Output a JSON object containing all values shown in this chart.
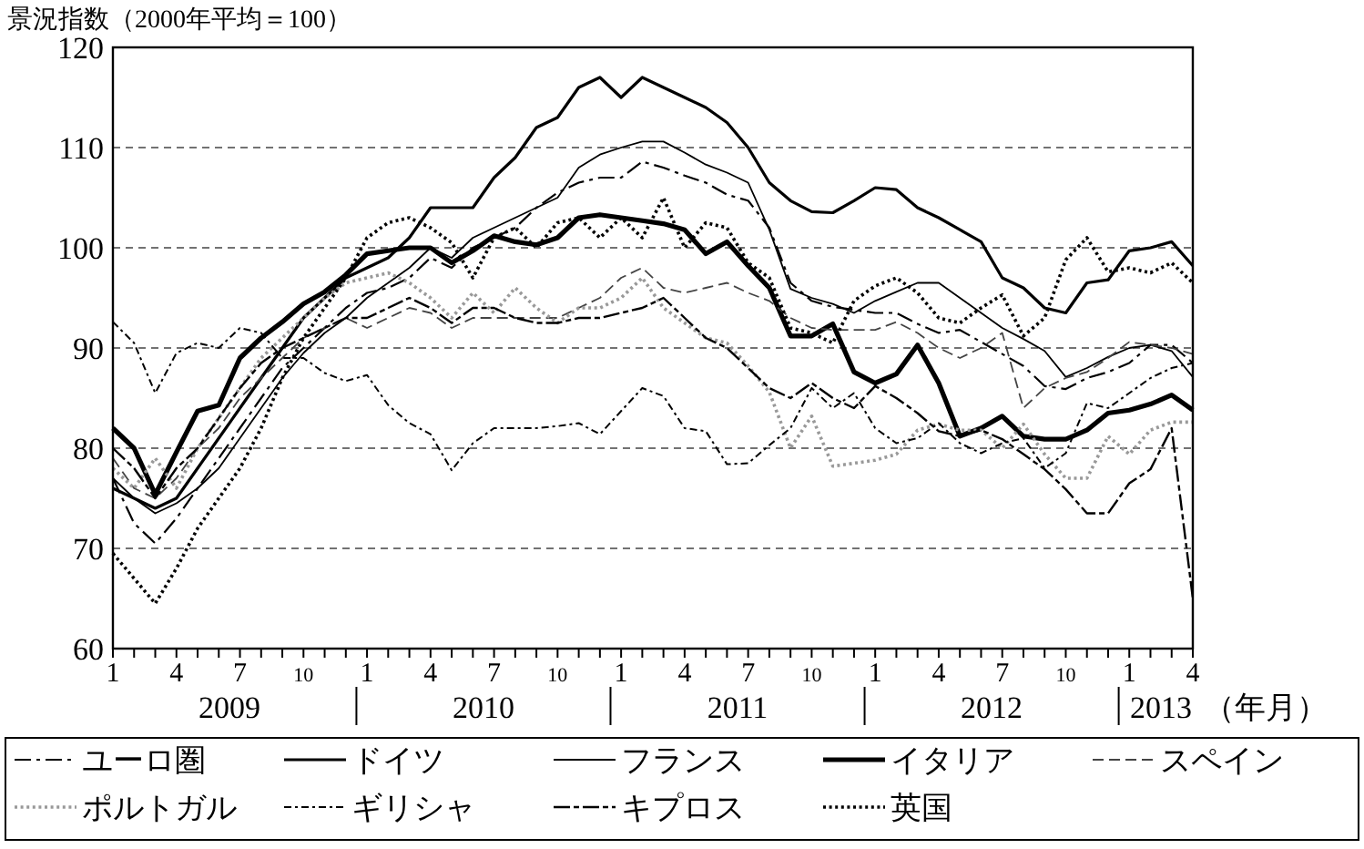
{
  "chart_data": {
    "type": "line",
    "title": "景況指数（2000年平均＝100）",
    "xlabel": "（年月）",
    "x": [
      "2009-01",
      "2009-02",
      "2009-03",
      "2009-04",
      "2009-05",
      "2009-06",
      "2009-07",
      "2009-08",
      "2009-09",
      "2009-10",
      "2009-11",
      "2009-12",
      "2010-01",
      "2010-02",
      "2010-03",
      "2010-04",
      "2010-05",
      "2010-06",
      "2010-07",
      "2010-08",
      "2010-09",
      "2010-10",
      "2010-11",
      "2010-12",
      "2011-01",
      "2011-02",
      "2011-03",
      "2011-04",
      "2011-05",
      "2011-06",
      "2011-07",
      "2011-08",
      "2011-09",
      "2011-10",
      "2011-11",
      "2011-12",
      "2012-01",
      "2012-02",
      "2012-03",
      "2012-04",
      "2012-05",
      "2012-06",
      "2012-07",
      "2012-08",
      "2012-09",
      "2012-10",
      "2012-11",
      "2012-12",
      "2013-01",
      "2013-02",
      "2013-03",
      "2013-04"
    ],
    "xlim": [
      "2009-01",
      "2013-04"
    ],
    "xticks": [
      {
        "value": "2009-01",
        "label": "1"
      },
      {
        "value": "2009-02",
        "label": null
      },
      {
        "value": "2009-03",
        "label": null
      },
      {
        "value": "2009-04",
        "label": "4"
      },
      {
        "value": "2009-05",
        "label": null
      },
      {
        "value": "2009-06",
        "label": null
      },
      {
        "value": "2009-07",
        "label": "7"
      },
      {
        "value": "2009-08",
        "label": null
      },
      {
        "value": "2009-09",
        "label": null
      },
      {
        "value": "2009-10",
        "label": "10"
      },
      {
        "value": "2009-11",
        "label": null
      },
      {
        "value": "2009-12",
        "label": null
      },
      {
        "value": "2010-01",
        "label": "1"
      },
      {
        "value": "2010-02",
        "label": null
      },
      {
        "value": "2010-03",
        "label": null
      },
      {
        "value": "2010-04",
        "label": "4"
      },
      {
        "value": "2010-05",
        "label": null
      },
      {
        "value": "2010-06",
        "label": null
      },
      {
        "value": "2010-07",
        "label": "7"
      },
      {
        "value": "2010-08",
        "label": null
      },
      {
        "value": "2010-09",
        "label": null
      },
      {
        "value": "2010-10",
        "label": "10"
      },
      {
        "value": "2010-11",
        "label": null
      },
      {
        "value": "2010-12",
        "label": null
      },
      {
        "value": "2011-01",
        "label": "1"
      },
      {
        "value": "2011-02",
        "label": null
      },
      {
        "value": "2011-03",
        "label": null
      },
      {
        "value": "2011-04",
        "label": "4"
      },
      {
        "value": "2011-05",
        "label": null
      },
      {
        "value": "2011-06",
        "label": null
      },
      {
        "value": "2011-07",
        "label": "7"
      },
      {
        "value": "2011-08",
        "label": null
      },
      {
        "value": "2011-09",
        "label": null
      },
      {
        "value": "2011-10",
        "label": "10"
      },
      {
        "value": "2011-11",
        "label": null
      },
      {
        "value": "2011-12",
        "label": null
      },
      {
        "value": "2012-01",
        "label": "1"
      },
      {
        "value": "2012-02",
        "label": null
      },
      {
        "value": "2012-03",
        "label": null
      },
      {
        "value": "2012-04",
        "label": "4"
      },
      {
        "value": "2012-05",
        "label": null
      },
      {
        "value": "2012-06",
        "label": null
      },
      {
        "value": "2012-07",
        "label": "7"
      },
      {
        "value": "2012-08",
        "label": null
      },
      {
        "value": "2012-09",
        "label": null
      },
      {
        "value": "2012-10",
        "label": "10"
      },
      {
        "value": "2012-11",
        "label": null
      },
      {
        "value": "2012-12",
        "label": null
      },
      {
        "value": "2013-01",
        "label": "1"
      },
      {
        "value": "2013-02",
        "label": null
      },
      {
        "value": "2013-03",
        "label": null
      },
      {
        "value": "2013-04",
        "label": "4"
      }
    ],
    "ylim": [
      60,
      120
    ],
    "yticks": [
      60,
      70,
      80,
      90,
      100,
      110,
      120
    ],
    "grid": "y",
    "legend": "bottom",
    "annotations": [
      "2009",
      "2010",
      "2011",
      "2012",
      "2013"
    ],
    "series": [
      {
        "name": "ユーロ圏",
        "color": "#000000",
        "line_style": "dashed",
        "values": [
          77,
          72.5,
          70.5,
          73,
          76,
          79,
          82,
          85,
          88,
          90,
          92,
          94,
          95.5,
          96,
          97,
          99,
          98,
          100,
          101,
          102,
          104,
          105.5,
          106.5,
          107,
          107,
          108.6,
          108,
          107.2,
          106.5,
          105.3,
          104.7,
          102,
          96.5,
          94.7,
          94.1,
          93.8,
          93.5,
          93.5,
          92.4,
          91.5,
          91.8,
          90.6,
          89.4,
          88.2,
          86.2,
          85.9,
          87,
          87.6,
          88.5,
          90.3,
          90.3,
          88.5
        ]
      },
      {
        "name": "ドイツ",
        "color": "#000000",
        "line_style": "solid",
        "values": [
          76,
          75,
          74,
          75,
          78,
          81,
          84,
          87,
          90,
          93,
          95,
          97,
          98,
          99,
          101,
          104,
          104,
          104,
          107,
          109,
          112,
          113,
          116,
          117,
          115,
          117,
          116,
          115,
          114,
          112.5,
          110,
          106.5,
          104.7,
          103.6,
          103.5,
          104.7,
          106,
          105.8,
          104,
          103,
          101.8,
          100.6,
          97,
          96,
          94,
          93.5,
          96.5,
          96.8,
          99.7,
          100,
          100.6,
          98.2
        ]
      },
      {
        "name": "フランス",
        "color": "#000000",
        "line_style": "solid",
        "values": [
          77,
          75,
          73.5,
          74.5,
          76,
          78,
          81,
          84,
          87,
          89.5,
          91.5,
          93,
          95,
          96.5,
          98,
          100,
          99,
          101,
          102,
          103,
          104,
          105,
          108,
          109.3,
          110,
          110.6,
          110.6,
          109.5,
          108.3,
          107.5,
          106.5,
          101.8,
          95.9,
          95,
          94.4,
          93.5,
          94.7,
          95.6,
          96.5,
          96.5,
          95,
          93.5,
          92,
          90.9,
          89.7,
          87.1,
          88,
          89.1,
          90,
          90.3,
          89.7,
          87.1
        ]
      },
      {
        "name": "イタリア",
        "color": "#000000",
        "line_style": "solid",
        "values": [
          82,
          80,
          75.4,
          79.6,
          83.7,
          84.3,
          89,
          91,
          92.6,
          94.4,
          95.6,
          97.3,
          99.4,
          99.7,
          100,
          100,
          98.5,
          99.7,
          101.2,
          100.6,
          100.3,
          101,
          103,
          103.3,
          103,
          102.7,
          102.4,
          101.8,
          99.4,
          100.6,
          98.2,
          96,
          91.2,
          91.2,
          92.4,
          87.6,
          86.5,
          87.4,
          90.3,
          86.5,
          81.2,
          82,
          83.2,
          81.2,
          80.9,
          80.9,
          81.8,
          83.5,
          83.8,
          84.4,
          85.3,
          83.8
        ]
      },
      {
        "name": "スペイン",
        "color": "#444444",
        "line_style": "dashed",
        "values": [
          79,
          76,
          75,
          77,
          80,
          82,
          85,
          87,
          89,
          91,
          92,
          93,
          92,
          93,
          94,
          93.5,
          92,
          93,
          93,
          93,
          93,
          93,
          94,
          95,
          97,
          98,
          96,
          95.5,
          96,
          96.5,
          95.5,
          94.7,
          93,
          92,
          91.8,
          91.8,
          91.8,
          92.6,
          91.5,
          90,
          89,
          90,
          91.5,
          84,
          86,
          87,
          87.6,
          89,
          90.6,
          90.3,
          90,
          89.4
        ]
      },
      {
        "name": "ポルトガル",
        "color": "#999999",
        "line_style": "dotted",
        "values": [
          78,
          76,
          79,
          76,
          80,
          83,
          86,
          89,
          91,
          93,
          95,
          96.5,
          97,
          97.5,
          96.5,
          95,
          93,
          95.5,
          93.5,
          96,
          94,
          92.5,
          94,
          94,
          95,
          97,
          94,
          92.5,
          91,
          90.5,
          88.2,
          85.6,
          80,
          83.2,
          78.2,
          78.5,
          78.8,
          79.4,
          81.8,
          82.4,
          81.8,
          81.8,
          80,
          82.4,
          79.4,
          77,
          77,
          81.2,
          79.4,
          81.8,
          82.6,
          82.6
        ]
      },
      {
        "name": "ギリシャ",
        "color": "#000000",
        "line_style": "dashed",
        "values": [
          92.6,
          90.5,
          85.5,
          89.5,
          90.5,
          90,
          92,
          91.5,
          89,
          89,
          87.5,
          86.7,
          87.3,
          84.3,
          82.5,
          81.4,
          77.8,
          80.5,
          82,
          82,
          82,
          82.2,
          82.5,
          81.4,
          83.7,
          86,
          85.2,
          82,
          81.7,
          78.4,
          78.5,
          80.3,
          82,
          86,
          84,
          85.5,
          82,
          80.5,
          81,
          82.5,
          80.5,
          79.5,
          80.5,
          81,
          78,
          79.5,
          84.5,
          84,
          85.5,
          87,
          88,
          88.5
        ]
      },
      {
        "name": "キプロス",
        "color": "#000000",
        "line_style": "dashed",
        "values": [
          80,
          78,
          75,
          78,
          80,
          83,
          86,
          88.5,
          90,
          91,
          92,
          93,
          93,
          94,
          95,
          94,
          92.5,
          94,
          94,
          93,
          92.5,
          92.5,
          93,
          93,
          93.5,
          94,
          95,
          93,
          91,
          90,
          88,
          86,
          85,
          86.5,
          85,
          84,
          86.2,
          85,
          83.5,
          81.7,
          81.2,
          81.8,
          80.9,
          79.4,
          77.9,
          75.9,
          73.5,
          73.5,
          76.5,
          77.9,
          82,
          65
        ]
      },
      {
        "name": "英国",
        "color": "#000000",
        "line_style": "dotted",
        "values": [
          69.5,
          67,
          64.5,
          68,
          72,
          75,
          78,
          82,
          87,
          91,
          94,
          97,
          101,
          102.5,
          103,
          102,
          100.5,
          97,
          101,
          102,
          100,
          102.5,
          103,
          101,
          103,
          101,
          105,
          100,
          102.5,
          102,
          98.5,
          97,
          92,
          91.5,
          90.5,
          94.7,
          96.2,
          97,
          95.5,
          93,
          92.5,
          94,
          95.3,
          91.2,
          93,
          98.8,
          101,
          97.6,
          98,
          97.5,
          98.5,
          96.5
        ]
      }
    ]
  }
}
